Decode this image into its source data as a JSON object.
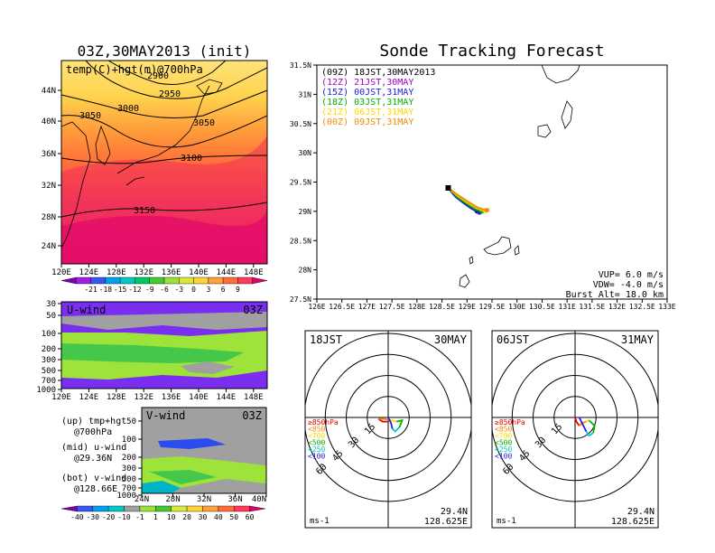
{
  "titles": {
    "left": "03Z,30MAY2013 (init)",
    "right": "Sonde Tracking Forecast"
  },
  "colors": {
    "purple": "#a000c8",
    "blue": "#2020e0",
    "green": "#00b400",
    "orange": "#f08c00",
    "red": "#e00000",
    "black": "#000000"
  },
  "chart_data": [
    {
      "type": "heatmap",
      "panel": "temperature-height map",
      "label": "temp(C)+hgt(m)@700hPa",
      "x_ticks": [
        "120E",
        "124E",
        "128E",
        "132E",
        "136E",
        "140E",
        "144E",
        "148E"
      ],
      "y_ticks": [
        "24N",
        "28N",
        "32N",
        "36N",
        "40N",
        "44N"
      ],
      "contour_labels": [
        "2900",
        "2950",
        "3000",
        "3050",
        "3050",
        "3100",
        "3150"
      ],
      "colorbar_ticks": [
        "-21",
        "-18",
        "-15",
        "-12",
        "-9",
        "-6",
        "-3",
        "0",
        "3",
        "6",
        "9"
      ]
    },
    {
      "type": "heatmap",
      "panel": "U-wind cross section",
      "label": "U-wind",
      "time": "03Z",
      "x_ticks": [
        "120E",
        "124E",
        "128E",
        "132E",
        "136E",
        "140E",
        "144E",
        "148E"
      ],
      "y_ticks": [
        "30",
        "50",
        "100",
        "200",
        "300",
        "500",
        "700",
        "1000"
      ]
    },
    {
      "type": "heatmap",
      "panel": "V-wind cross section",
      "label": "V-wind",
      "time": "03Z",
      "x_ticks": [
        "24N",
        "28N",
        "32N",
        "36N",
        "40N"
      ],
      "y_ticks": [
        "50",
        "100",
        "200",
        "300",
        "500",
        "700",
        "1000"
      ],
      "colorbar_ticks": [
        "-40",
        "-30",
        "-20",
        "-10",
        "-1",
        "1",
        "10",
        "20",
        "30",
        "40",
        "50",
        "60"
      ]
    },
    {
      "type": "line",
      "panel": "sonde tracking map",
      "x_ticks": [
        "126E",
        "126.5E",
        "127E",
        "127.5E",
        "128E",
        "128.5E",
        "129E",
        "129.5E",
        "130E",
        "130.5E",
        "131E",
        "131.5E",
        "132E",
        "132.5E",
        "133E"
      ],
      "y_ticks": [
        "31.5N",
        "31N",
        "30.5N",
        "30N",
        "29.5N",
        "29N",
        "28.5N",
        "28N",
        "27.5N"
      ],
      "xlim": [
        126,
        133
      ],
      "ylim": [
        27.5,
        31.5
      ],
      "launch": {
        "lon": 128.625,
        "lat": 29.4
      },
      "series": [
        {
          "name": "(09Z) 18JST,30MAY2013",
          "color": "#000000",
          "lon": [
            128.625,
            128.75,
            128.9,
            129.05,
            129.15,
            129.2
          ],
          "lat": [
            29.4,
            29.27,
            29.17,
            29.08,
            29.02,
            29.0
          ]
        },
        {
          "name": "(12Z) 21JST,30MAY",
          "color": "#a000c8",
          "lon": [
            128.625,
            128.76,
            128.92,
            129.07,
            129.18,
            129.23
          ],
          "lat": [
            29.4,
            29.26,
            29.15,
            29.06,
            29.01,
            28.99
          ]
        },
        {
          "name": "(15Z) 00JST,31MAY",
          "color": "#2020e0",
          "lon": [
            128.625,
            128.78,
            128.95,
            129.1,
            129.2,
            129.25
          ],
          "lat": [
            29.4,
            29.24,
            29.13,
            29.04,
            29.0,
            28.98
          ]
        },
        {
          "name": "(18Z) 03JST,31MAY",
          "color": "#00b400",
          "lon": [
            128.625,
            128.8,
            128.98,
            129.14,
            129.25,
            129.3
          ],
          "lat": [
            29.4,
            29.25,
            29.14,
            29.05,
            29.01,
            29.0
          ]
        },
        {
          "name": "(21Z) 06JST,31MAY",
          "color": "#ffd700",
          "lon": [
            128.625,
            128.82,
            129.01,
            129.18,
            129.3,
            129.36
          ],
          "lat": [
            29.4,
            29.26,
            29.15,
            29.06,
            29.02,
            29.01
          ]
        },
        {
          "name": "(00Z) 09JST,31MAY",
          "color": "#f08c00",
          "lon": [
            128.625,
            128.83,
            129.03,
            129.2,
            129.33,
            129.4
          ],
          "lat": [
            29.4,
            29.27,
            29.16,
            29.07,
            29.03,
            29.02
          ]
        }
      ],
      "info": [
        "VUP= 6.0 m/s",
        "VDW= -4.0 m/s",
        "Burst Alt= 18.0 km"
      ]
    },
    {
      "type": "line",
      "panel": "hodograph 18JST",
      "time": "18JST",
      "date": "30MAY",
      "rings": [
        "15",
        "30",
        "45",
        "60"
      ],
      "unit": "ms-1",
      "location": [
        "29.4N",
        "128.625E"
      ],
      "legend": [
        "≥850hPa",
        "<850",
        "<700",
        "<500",
        "<250",
        "<100"
      ],
      "legend_colors": [
        "#e00000",
        "#f08c00",
        "#ffd700",
        "#00b400",
        "#00c8c8",
        "#2020e0"
      ],
      "series": [
        {
          "name": "≥850hPa",
          "color": "#e00000",
          "u": [
            0,
            -4,
            -7
          ],
          "v": [
            -3,
            -3,
            -1
          ]
        },
        {
          "name": "<850",
          "color": "#f08c00",
          "u": [
            -7,
            -3,
            2
          ],
          "v": [
            -1,
            -1,
            -2
          ]
        },
        {
          "name": "<700",
          "color": "#ffd700",
          "u": [
            2,
            6
          ],
          "v": [
            -2,
            -3
          ]
        },
        {
          "name": "<500",
          "color": "#00b400",
          "u": [
            6,
            10,
            8
          ],
          "v": [
            -3,
            -2,
            -7
          ]
        },
        {
          "name": "<250",
          "color": "#00c8c8",
          "u": [
            8,
            5,
            3
          ],
          "v": [
            -7,
            -10,
            -8
          ]
        },
        {
          "name": "<100",
          "color": "#2020e0",
          "u": [
            3,
            2,
            0
          ],
          "v": [
            -8,
            -4,
            0
          ]
        }
      ]
    },
    {
      "type": "line",
      "panel": "hodograph 06JST",
      "time": "06JST",
      "date": "31MAY",
      "rings": [
        "15",
        "30",
        "45",
        "60"
      ],
      "unit": "ms-1",
      "location": [
        "29.4N",
        "128.625E"
      ],
      "legend": [
        "≥850hPa",
        "<850",
        "<700",
        "<500",
        "<250",
        "<100"
      ],
      "legend_colors": [
        "#e00000",
        "#f08c00",
        "#ffd700",
        "#00b400",
        "#00c8c8",
        "#2020e0"
      ],
      "series": [
        {
          "name": "≥850hPa",
          "color": "#e00000",
          "u": [
            0,
            1,
            3
          ],
          "v": [
            0,
            -3,
            -6
          ]
        },
        {
          "name": "<850",
          "color": "#f08c00",
          "u": [
            3,
            5,
            8
          ],
          "v": [
            -6,
            -4,
            -3
          ]
        },
        {
          "name": "<700",
          "color": "#ffd700",
          "u": [
            8,
            10
          ],
          "v": [
            -3,
            -2
          ]
        },
        {
          "name": "<500",
          "color": "#00b400",
          "u": [
            10,
            14,
            13
          ],
          "v": [
            -2,
            -6,
            -11
          ]
        },
        {
          "name": "<250",
          "color": "#00c8c8",
          "u": [
            13,
            10,
            8
          ],
          "v": [
            -11,
            -13,
            -10
          ]
        },
        {
          "name": "<100",
          "color": "#2020e0",
          "u": [
            8,
            6,
            3
          ],
          "v": [
            -10,
            -6,
            0
          ]
        }
      ]
    }
  ],
  "side_labels": [
    [
      "(up) tmp+hgt",
      "@700hPa"
    ],
    [
      "(mid) u-wind",
      "@29.36N"
    ],
    [
      "(bot) v-wind",
      "@128.66E"
    ]
  ]
}
